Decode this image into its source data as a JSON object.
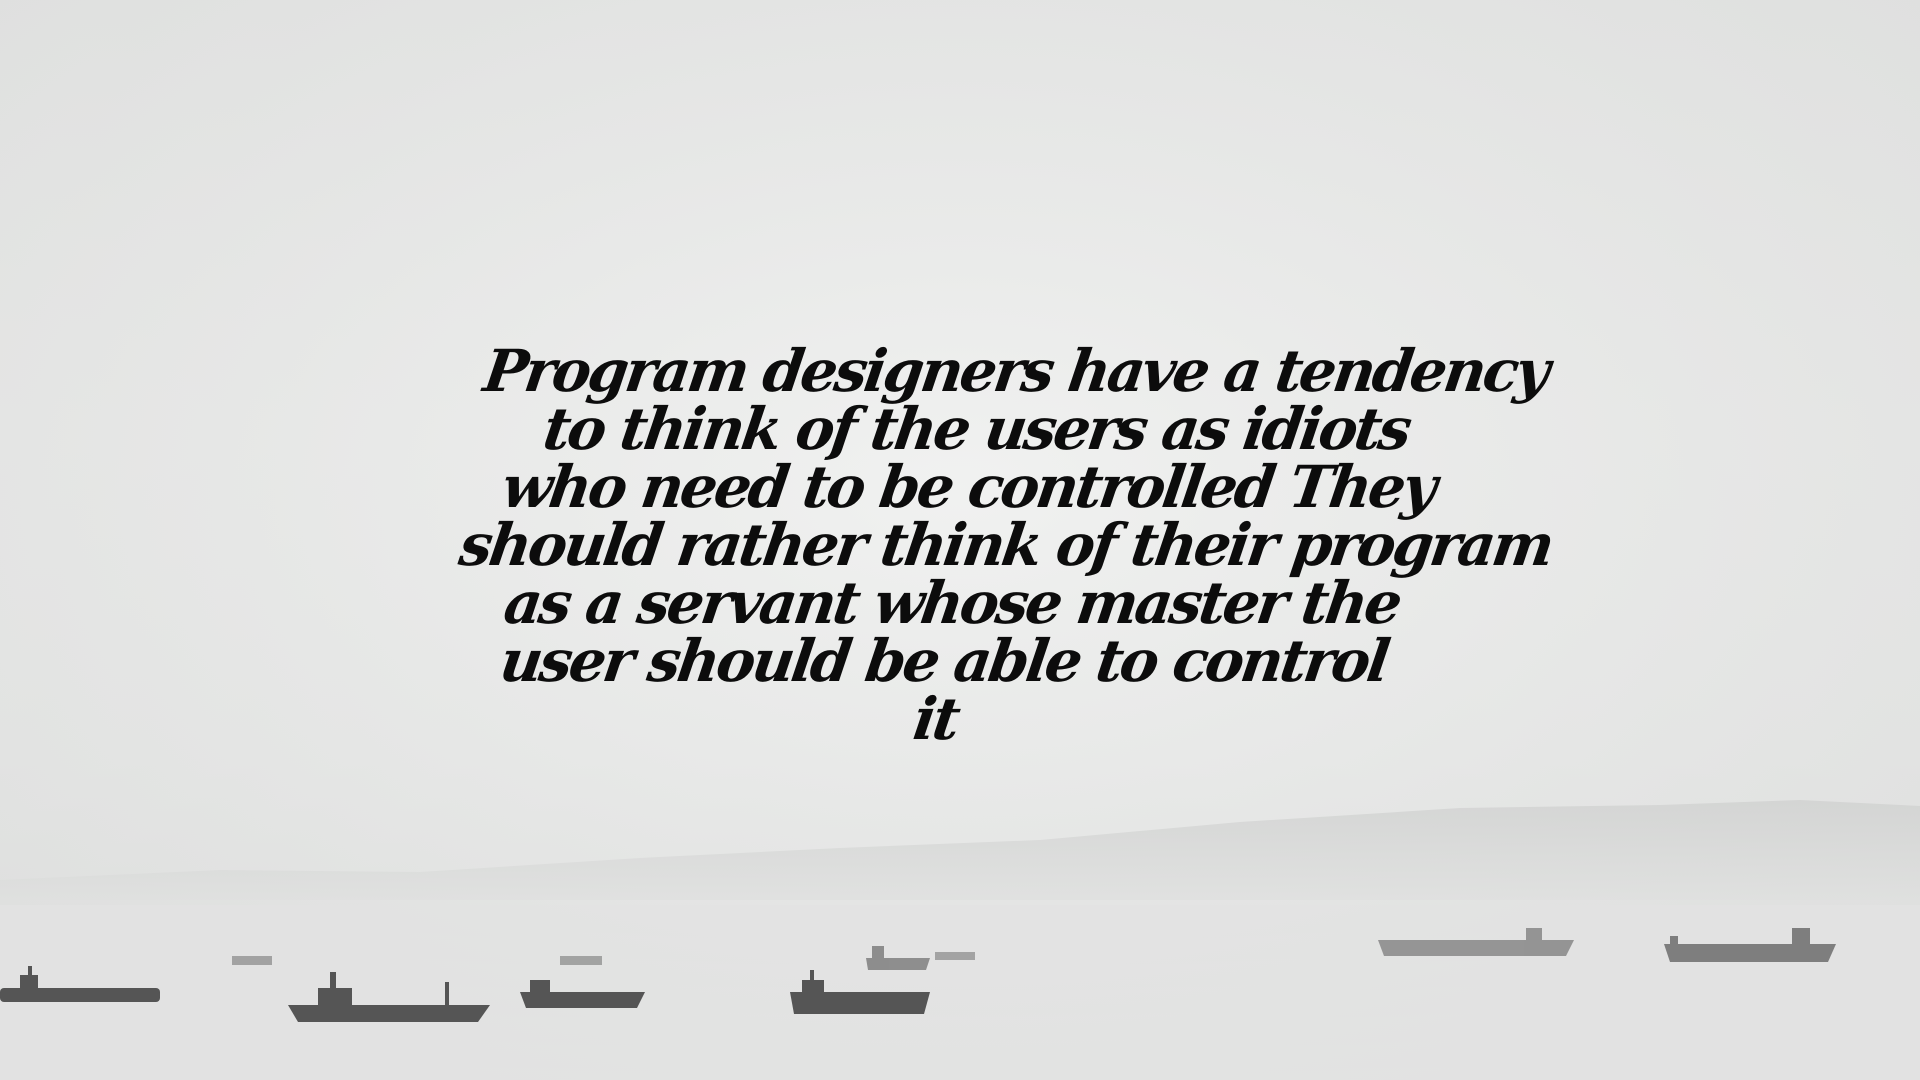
{
  "quote": {
    "lines": [
      "Program designers have a tendency",
      "to think of the users as idiots",
      "who need to be controlled They",
      "should rather think of their program",
      "as a servant whose master the",
      "user should be able to control",
      "it"
    ]
  },
  "background": {
    "description_tone": "grayscale foggy sea",
    "sky_color": "#ebecea",
    "water_color": "#e4e5e4",
    "ship_color": "#4a4a4a"
  }
}
